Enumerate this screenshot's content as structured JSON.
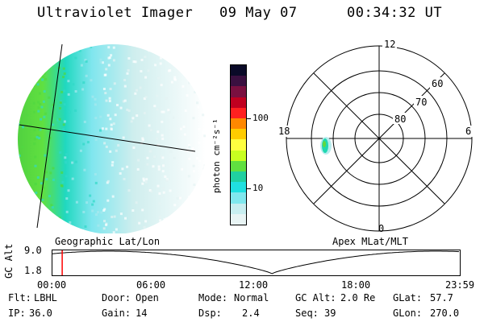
{
  "header": {
    "instrument": "Ultraviolet Imager",
    "date": "09 May 07",
    "time": "00:34:32 UT"
  },
  "colorbar": {
    "unit_label": "photon cm⁻²s⁻¹",
    "ticks": [
      "100",
      "10"
    ],
    "colors": [
      "#0a0a28",
      "#3a1040",
      "#7a1040",
      "#c00020",
      "#ff2020",
      "#ff8800",
      "#ffcc00",
      "#ffff40",
      "#c8ff20",
      "#60e040",
      "#20d0a0",
      "#20e0e0",
      "#80e8ee",
      "#c8eef0",
      "#e8f4f4"
    ]
  },
  "geo_panel": {
    "caption": "Geographic Lat/Lon"
  },
  "polar_panel": {
    "caption": "Apex MLat/MLT",
    "mlt_labels": {
      "top": "12",
      "right": "6",
      "bottom": "0",
      "left": "18"
    },
    "lat_labels": [
      "60",
      "70",
      "80"
    ]
  },
  "orbit_plot": {
    "y_axis_label": "GC Alt",
    "y_ticks": [
      "9.0",
      "1.8"
    ],
    "x_ticks": [
      "00:00",
      "06:00",
      "12:00",
      "18:00",
      "23:59"
    ],
    "current_time_marker_fraction": 0.024,
    "marker_color": "#ff0000"
  },
  "info": {
    "row1": [
      {
        "key": "Flt:",
        "value": "LBHL"
      },
      {
        "key": "Door:",
        "value": "Open"
      },
      {
        "key": "Mode:",
        "value": "Normal"
      },
      {
        "key": "GC Alt:",
        "value": "2.0 Re"
      },
      {
        "key": "GLat:",
        "value": "57.7"
      }
    ],
    "row2": [
      {
        "key": "IP:",
        "value": "36.0"
      },
      {
        "key": "Gain:",
        "value": "14"
      },
      {
        "key": "Dsp:",
        "value": "2.4"
      },
      {
        "key": "Seq:",
        "value": "39"
      },
      {
        "key": "GLon:",
        "value": "270.0"
      }
    ]
  }
}
